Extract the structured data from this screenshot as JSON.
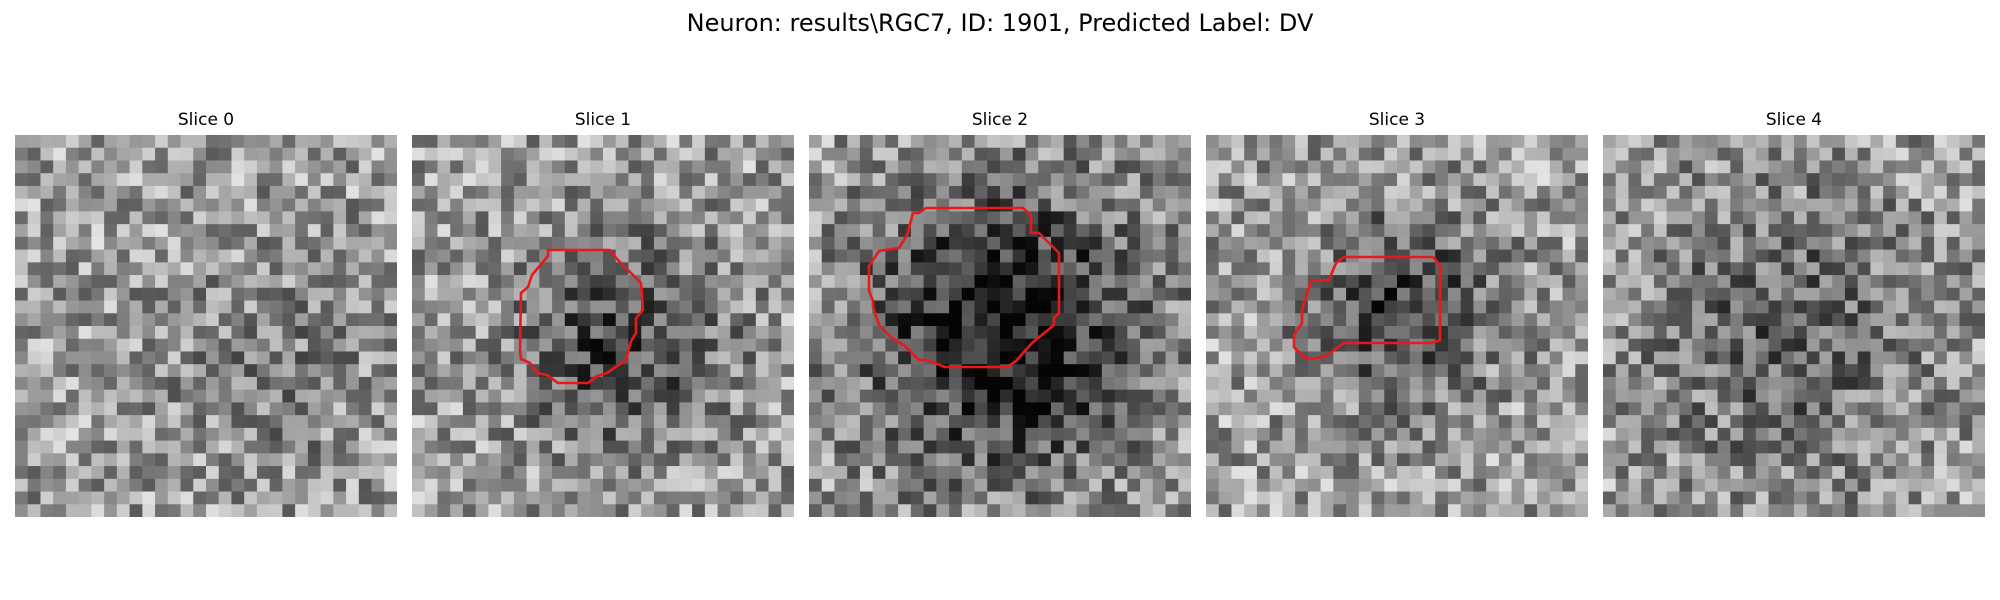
{
  "figure": {
    "title": "Neuron: results\\RGC7, ID: 1901, Predicted Label: DV"
  },
  "panels": [
    {
      "title": "Slice 0",
      "seed": 11,
      "blob_strength": 0.1,
      "has_roi": false
    },
    {
      "title": "Slice 1",
      "seed": 23,
      "blob_strength": 0.35,
      "has_roi": true
    },
    {
      "title": "Slice 2",
      "seed": 37,
      "blob_strength": 0.55,
      "has_roi": true
    },
    {
      "title": "Slice 3",
      "seed": 49,
      "blob_strength": 0.4,
      "has_roi": true
    },
    {
      "title": "Slice 4",
      "seed": 61,
      "blob_strength": 0.25,
      "has_roi": false
    }
  ],
  "colors": {
    "roi_outline": "#e8191c",
    "background": "#ffffff"
  },
  "colormap": "gray"
}
